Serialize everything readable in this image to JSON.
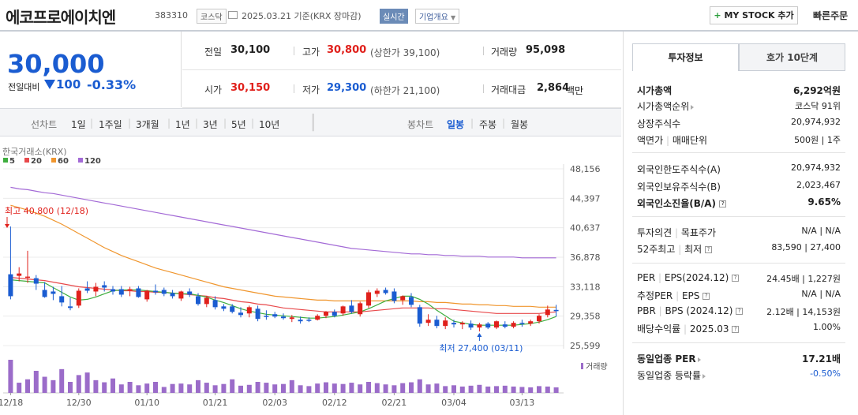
{
  "header": {
    "title": "에코프로에이치엔",
    "code": "383310",
    "market": "코스닥",
    "date": "2025.03.21  기준(KRX 장마감)",
    "live": "실시간",
    "company_info": "기업개요",
    "my_stock": "MY STOCK 추가",
    "quick_order": "빠른주문"
  },
  "price": {
    "current": "30,000",
    "change_label": "전일대비",
    "change": "100",
    "change_pct": "-0.33%"
  },
  "stats": {
    "prev_close_label": "전일",
    "prev_close": "30,100",
    "high_label": "고가",
    "high": "30,800",
    "upper_limit": "(상한가 39,100)",
    "volume_label": "거래량",
    "volume": "95,098",
    "open_label": "시가",
    "open": "30,150",
    "low_label": "저가",
    "low": "29,300",
    "lower_limit": "(하한가 21,100)",
    "amount_label": "거래대금",
    "amount": "2,864",
    "amount_unit": "백만"
  },
  "period_bar": {
    "line_chart": "선차트",
    "periods": [
      "1일",
      "1주일",
      "3개월",
      "1년",
      "3년",
      "5년",
      "10년"
    ],
    "candle_chart": "봉차트",
    "candle_periods": [
      "일봉",
      "주봉",
      "월봉"
    ],
    "selected_candle": "일봉"
  },
  "chart_data": {
    "type": "candlestick",
    "source": "한국거래소(KRX)",
    "legend": [
      {
        "name": "5",
        "color": "#3fae3f"
      },
      {
        "name": "20",
        "color": "#e8494b"
      },
      {
        "name": "60",
        "color": "#f0962e"
      },
      {
        "name": "120",
        "color": "#a36ad6"
      }
    ],
    "y_ticks": [
      "48,156",
      "44,397",
      "40,637",
      "36,878",
      "33,118",
      "29,358",
      "25,599"
    ],
    "ylim": [
      25599,
      48156
    ],
    "x_ticks": [
      "12/18",
      "12/30",
      "01/10",
      "01/21",
      "02/03",
      "02/12",
      "02/21",
      "03/04",
      "03/13"
    ],
    "annotations": {
      "high_label": "최고 40,800 (12/18)",
      "low_label": "최저 27,400 (03/11)"
    },
    "volume_label": "거래량",
    "candles": [
      {
        "o": 34700,
        "h": 40800,
        "l": 31500,
        "c": 31900
      },
      {
        "o": 34500,
        "h": 35600,
        "l": 33800,
        "c": 34800
      },
      {
        "o": 34300,
        "h": 37700,
        "l": 33600,
        "c": 34400
      },
      {
        "o": 34200,
        "h": 34600,
        "l": 32700,
        "c": 33500
      },
      {
        "o": 32700,
        "h": 33700,
        "l": 31700,
        "c": 31800
      },
      {
        "o": 32500,
        "h": 33100,
        "l": 31400,
        "c": 32200
      },
      {
        "o": 31900,
        "h": 33200,
        "l": 30600,
        "c": 31100
      },
      {
        "o": 30600,
        "h": 31700,
        "l": 30100,
        "c": 30400
      },
      {
        "o": 30700,
        "h": 32900,
        "l": 30400,
        "c": 32600
      },
      {
        "o": 32900,
        "h": 33800,
        "l": 32300,
        "c": 32600
      },
      {
        "o": 32500,
        "h": 33600,
        "l": 31900,
        "c": 33100
      },
      {
        "o": 33300,
        "h": 33800,
        "l": 32500,
        "c": 33000
      },
      {
        "o": 32800,
        "h": 33200,
        "l": 32100,
        "c": 32500
      },
      {
        "o": 32800,
        "h": 33200,
        "l": 31800,
        "c": 32100
      },
      {
        "o": 32600,
        "h": 33100,
        "l": 31900,
        "c": 32800
      },
      {
        "o": 32900,
        "h": 33200,
        "l": 31700,
        "c": 31800
      },
      {
        "o": 31500,
        "h": 32700,
        "l": 31200,
        "c": 32600
      },
      {
        "o": 32600,
        "h": 33400,
        "l": 32100,
        "c": 32400
      },
      {
        "o": 32700,
        "h": 33000,
        "l": 31900,
        "c": 32200
      },
      {
        "o": 32300,
        "h": 32700,
        "l": 31600,
        "c": 31900
      },
      {
        "o": 31600,
        "h": 32600,
        "l": 31300,
        "c": 32500
      },
      {
        "o": 32500,
        "h": 32900,
        "l": 31800,
        "c": 32100
      },
      {
        "o": 31900,
        "h": 32300,
        "l": 30700,
        "c": 30900
      },
      {
        "o": 30900,
        "h": 31900,
        "l": 30500,
        "c": 31700
      },
      {
        "o": 31400,
        "h": 31900,
        "l": 30200,
        "c": 30500
      },
      {
        "o": 30600,
        "h": 30900,
        "l": 30000,
        "c": 30300
      },
      {
        "o": 30600,
        "h": 30900,
        "l": 29700,
        "c": 29900
      },
      {
        "o": 29800,
        "h": 30500,
        "l": 29200,
        "c": 29500
      },
      {
        "o": 29700,
        "h": 30700,
        "l": 29200,
        "c": 30500
      },
      {
        "o": 30300,
        "h": 30700,
        "l": 28700,
        "c": 29000
      },
      {
        "o": 29400,
        "h": 30100,
        "l": 28900,
        "c": 29300
      },
      {
        "o": 29600,
        "h": 29900,
        "l": 29100,
        "c": 29300
      },
      {
        "o": 29300,
        "h": 29700,
        "l": 28900,
        "c": 29100
      },
      {
        "o": 29000,
        "h": 29500,
        "l": 28600,
        "c": 29200
      },
      {
        "o": 28900,
        "h": 29300,
        "l": 28400,
        "c": 28700
      },
      {
        "o": 28900,
        "h": 29200,
        "l": 28600,
        "c": 28800
      },
      {
        "o": 28900,
        "h": 29600,
        "l": 28800,
        "c": 29400
      },
      {
        "o": 29400,
        "h": 30000,
        "l": 29100,
        "c": 29900
      },
      {
        "o": 29900,
        "h": 30200,
        "l": 29200,
        "c": 29400
      },
      {
        "o": 29700,
        "h": 30700,
        "l": 29400,
        "c": 30600
      },
      {
        "o": 30700,
        "h": 31400,
        "l": 29700,
        "c": 29900
      },
      {
        "o": 29600,
        "h": 31200,
        "l": 29300,
        "c": 31000
      },
      {
        "o": 30700,
        "h": 32700,
        "l": 30400,
        "c": 32400
      },
      {
        "o": 32200,
        "h": 32900,
        "l": 31800,
        "c": 32600
      },
      {
        "o": 32700,
        "h": 33000,
        "l": 32100,
        "c": 32300
      },
      {
        "o": 32500,
        "h": 32900,
        "l": 31000,
        "c": 31300
      },
      {
        "o": 31400,
        "h": 32000,
        "l": 30800,
        "c": 31900
      },
      {
        "o": 31800,
        "h": 32300,
        "l": 30500,
        "c": 30800
      },
      {
        "o": 30500,
        "h": 30800,
        "l": 28000,
        "c": 28400
      },
      {
        "o": 28500,
        "h": 29600,
        "l": 28100,
        "c": 28900
      },
      {
        "o": 28900,
        "h": 29400,
        "l": 27800,
        "c": 28100
      },
      {
        "o": 28100,
        "h": 29200,
        "l": 27700,
        "c": 28800
      },
      {
        "o": 28500,
        "h": 28900,
        "l": 27900,
        "c": 28300
      },
      {
        "o": 28300,
        "h": 28700,
        "l": 27700,
        "c": 28500
      },
      {
        "o": 28400,
        "h": 28800,
        "l": 27600,
        "c": 27900
      },
      {
        "o": 27900,
        "h": 28500,
        "l": 27400,
        "c": 28300
      },
      {
        "o": 28400,
        "h": 28600,
        "l": 27700,
        "c": 27900
      },
      {
        "o": 27900,
        "h": 28800,
        "l": 27700,
        "c": 28700
      },
      {
        "o": 28300,
        "h": 28700,
        "l": 27800,
        "c": 28000
      },
      {
        "o": 28000,
        "h": 28700,
        "l": 27800,
        "c": 28500
      },
      {
        "o": 28500,
        "h": 28900,
        "l": 28000,
        "c": 28400
      },
      {
        "o": 28400,
        "h": 28900,
        "l": 28100,
        "c": 28700
      },
      {
        "o": 28700,
        "h": 29600,
        "l": 28400,
        "c": 29400
      },
      {
        "o": 29500,
        "h": 30700,
        "l": 29200,
        "c": 30200
      },
      {
        "o": 30150,
        "h": 30800,
        "l": 29300,
        "c": 30000
      }
    ],
    "ma5": [
      34000,
      33900,
      33800,
      33700,
      33600,
      33000,
      32400,
      31800,
      31400,
      31500,
      31800,
      32200,
      32600,
      32700,
      32700,
      32700,
      32600,
      32500,
      32400,
      32300,
      32200,
      32200,
      32000,
      31800,
      31400,
      31100,
      30700,
      30300,
      30000,
      29800,
      29600,
      29500,
      29400,
      29300,
      29200,
      29100,
      29100,
      29200,
      29300,
      29500,
      29700,
      29900,
      30300,
      30800,
      31300,
      31600,
      31900,
      31900,
      31500,
      30900,
      30100,
      29400,
      28700,
      28500,
      28300,
      28200,
      28200,
      28200,
      28200,
      28200,
      28300,
      28400,
      28600,
      28900,
      29300
    ],
    "ma20": [
      34300,
      34200,
      34100,
      34000,
      33900,
      33700,
      33500,
      33300,
      33100,
      33000,
      32900,
      32800,
      32700,
      32600,
      32600,
      32500,
      32500,
      32400,
      32400,
      32300,
      32200,
      32100,
      32000,
      31900,
      31700,
      31600,
      31400,
      31200,
      31100,
      30900,
      30800,
      30600,
      30400,
      30300,
      30200,
      30100,
      30000,
      29900,
      29900,
      29900,
      29900,
      29900,
      30000,
      30100,
      30200,
      30300,
      30400,
      30400,
      30400,
      30400,
      30300,
      30300,
      30200,
      30100,
      30000,
      29900,
      29800,
      29700,
      29700,
      29700,
      29700,
      29700,
      29700,
      29800,
      29900
    ],
    "ma60": [
      43500,
      43200,
      42900,
      42500,
      42100,
      41600,
      41100,
      40500,
      39900,
      39300,
      38700,
      38100,
      37600,
      37100,
      36700,
      36300,
      35900,
      35500,
      35200,
      34900,
      34600,
      34300,
      34000,
      33700,
      33400,
      33100,
      32900,
      32700,
      32500,
      32300,
      32100,
      31900,
      31800,
      31700,
      31600,
      31500,
      31400,
      31400,
      31300,
      31300,
      31300,
      31300,
      31300,
      31300,
      31300,
      31300,
      31300,
      31300,
      31200,
      31200,
      31100,
      31100,
      31000,
      30900,
      30900,
      30800,
      30800,
      30700,
      30700,
      30600,
      30600,
      30600,
      30500,
      30500,
      30500
    ],
    "ma120": [
      45800,
      45600,
      45500,
      45300,
      45100,
      45000,
      44800,
      44600,
      44400,
      44200,
      44000,
      43800,
      43600,
      43400,
      43200,
      43000,
      42800,
      42600,
      42400,
      42200,
      42000,
      41800,
      41600,
      41400,
      41200,
      41000,
      40800,
      40600,
      40400,
      40200,
      40000,
      39800,
      39600,
      39400,
      39200,
      39000,
      38800,
      38600,
      38400,
      38200,
      38000,
      37900,
      37800,
      37700,
      37600,
      37500,
      37400,
      37300,
      37300,
      37200,
      37200,
      37100,
      37100,
      37000,
      37000,
      37000,
      36900,
      36900,
      36900,
      36900,
      36800,
      36800,
      36800,
      36800,
      36800
    ],
    "volume": [
      780,
      240,
      320,
      520,
      380,
      300,
      560,
      260,
      420,
      480,
      300,
      250,
      340,
      200,
      260,
      180,
      220,
      260,
      140,
      210,
      220,
      200,
      300,
      240,
      180,
      210,
      320,
      170,
      190,
      260,
      240,
      200,
      210,
      300,
      180,
      160,
      220,
      250,
      220,
      210,
      240,
      200,
      260,
      230,
      200,
      180,
      230,
      250,
      320,
      200,
      220,
      160,
      180,
      150,
      170,
      190,
      150,
      160,
      170,
      150,
      140,
      130,
      160,
      150,
      130
    ]
  },
  "right_panel": {
    "tab_info": "투자정보",
    "tab_quote": "호가 10단계",
    "market_cap_label": "시가총액",
    "market_cap": "6,292억원",
    "market_cap_rank_label": "시가총액순위",
    "market_cap_rank": "코스닥 91위",
    "shares_label": "상장주식수",
    "shares": "20,974,932",
    "par_label": "액면가",
    "unit_label": "매매단위",
    "par_unit": "500원 | 1주",
    "foreign_limit_label": "외국인한도주식수(A)",
    "foreign_limit": "20,974,932",
    "foreign_hold_label": "외국인보유주식수(B)",
    "foreign_hold": "2,023,467",
    "foreign_ratio_label": "외국인소진율(B/A)",
    "foreign_ratio": "9.65%",
    "opinion_label": "투자의견",
    "target_label": "목표주가",
    "opinion_target": "N/A | N/A",
    "wk52_label": "52주최고",
    "wk52_low_label": "최저",
    "wk52": "83,590 | 27,400",
    "per_label": "PER",
    "eps_label": "EPS(2024.12)",
    "per_eps": "24.45배 | 1,227원",
    "est_per_label": "추정PER",
    "est_eps_label": "EPS",
    "est_per_eps": "N/A | N/A",
    "pbr_label": "PBR",
    "bps_label": "BPS (2024.12)",
    "pbr_bps": "2.12배 | 14,153원",
    "div_label": "배당수익률",
    "div_date": "2025.03",
    "div": "1.00%",
    "sector_per_label": "동일업종 PER",
    "sector_per": "17.21배",
    "sector_rate_label": "동일업종 등락률",
    "sector_rate": "-0.50%"
  }
}
